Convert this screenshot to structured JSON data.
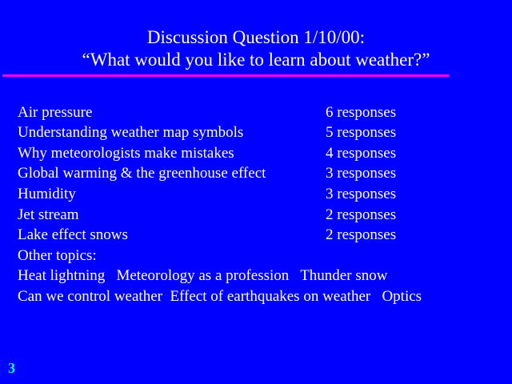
{
  "title": {
    "line1": "Discussion Question 1/10/00:",
    "line2": "“What would you like to learn about weather?”"
  },
  "responses": [
    {
      "topic": "Air pressure",
      "count": "6 responses"
    },
    {
      "topic": "Understanding weather map symbols",
      "count": "5 responses"
    },
    {
      "topic": "Why meteorologists make mistakes",
      "count": "4 responses"
    },
    {
      "topic": "Global warming & the greenhouse effect",
      "count": "3 responses"
    },
    {
      "topic": "Humidity",
      "count": "3 responses"
    },
    {
      "topic": "Jet stream",
      "count": "2 responses"
    },
    {
      "topic": "Lake effect snows",
      "count": "2 responses"
    }
  ],
  "other": {
    "heading": "Other topics:",
    "line1": "Heat lightning   Meteorology as a profession   Thunder snow",
    "line2": "Can we control weather  Effect of earthquakes on weather   Optics"
  },
  "page_number": "3",
  "colors": {
    "background": "#0000ff",
    "text": "#ffffff",
    "rule": "#ff00ff",
    "page_number": "#00ffff"
  }
}
